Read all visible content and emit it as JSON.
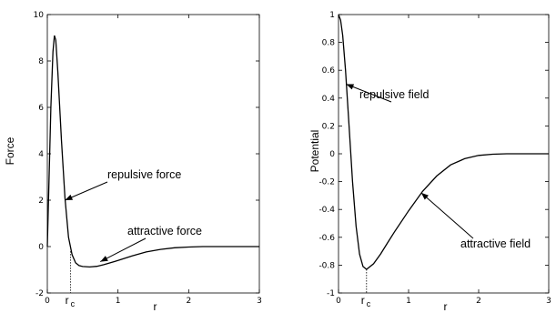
{
  "chart_data": [
    {
      "type": "line",
      "xlabel": "r",
      "ylabel": "Force",
      "xlim": [
        0,
        3
      ],
      "ylim": [
        -2,
        10
      ],
      "xticks": [
        "0",
        "1",
        "2",
        "3"
      ],
      "yticks": [
        "-2",
        "0",
        "2",
        "4",
        "6",
        "8",
        "10"
      ],
      "grid": false,
      "series": [
        {
          "x": [
            0,
            0.05,
            0.08,
            0.1,
            0.12,
            0.15,
            0.2,
            0.25,
            0.3,
            0.35,
            0.4,
            0.45,
            0.5,
            0.6,
            0.7,
            0.8,
            1.0,
            1.2,
            1.4,
            1.6,
            1.8,
            2.0,
            2.2,
            2.5,
            3.0
          ],
          "y": [
            0,
            6.0,
            8.4,
            9.1,
            8.9,
            7.5,
            4.6,
            2.1,
            0.4,
            -0.35,
            -0.7,
            -0.82,
            -0.86,
            -0.88,
            -0.85,
            -0.78,
            -0.6,
            -0.4,
            -0.23,
            -0.12,
            -0.05,
            -0.02,
            0,
            0,
            0
          ]
        }
      ],
      "annotations": [
        {
          "text": "repulsive force",
          "arrow_to": [
            0.25,
            2.0
          ]
        },
        {
          "text": "attractive force",
          "arrow_to": [
            0.75,
            -0.65
          ]
        }
      ],
      "marker": {
        "x": 0.33,
        "y": -0.2,
        "label_main": "r",
        "label_sub": "c"
      }
    },
    {
      "type": "line",
      "xlabel": "r",
      "ylabel": "Potential",
      "xlim": [
        0,
        3
      ],
      "ylim": [
        -1,
        1
      ],
      "xticks": [
        "0",
        "1",
        "2",
        "3"
      ],
      "yticks": [
        "-1",
        "-0.8",
        "-0.6",
        "-0.4",
        "-0.2",
        "0",
        "0.2",
        "0.4",
        "0.6",
        "0.8",
        "1"
      ],
      "grid": false,
      "series": [
        {
          "x": [
            0,
            0.03,
            0.06,
            0.1,
            0.15,
            0.2,
            0.25,
            0.3,
            0.35,
            0.4,
            0.5,
            0.6,
            0.7,
            0.8,
            1.0,
            1.2,
            1.4,
            1.6,
            1.8,
            2.0,
            2.2,
            2.4,
            2.6,
            3.0
          ],
          "y": [
            1.0,
            0.96,
            0.85,
            0.6,
            0.2,
            -0.2,
            -0.52,
            -0.72,
            -0.81,
            -0.83,
            -0.79,
            -0.72,
            -0.64,
            -0.56,
            -0.41,
            -0.27,
            -0.16,
            -0.08,
            -0.035,
            -0.012,
            -0.003,
            0,
            0,
            0
          ]
        }
      ],
      "annotations": [
        {
          "text": "repulsive field",
          "arrow_to": [
            0.11,
            0.5
          ]
        },
        {
          "text": "attractive field",
          "arrow_to": [
            1.18,
            -0.28
          ]
        }
      ],
      "marker": {
        "x": 0.4,
        "y": -0.83,
        "label_main": "r",
        "label_sub": "c"
      }
    }
  ]
}
